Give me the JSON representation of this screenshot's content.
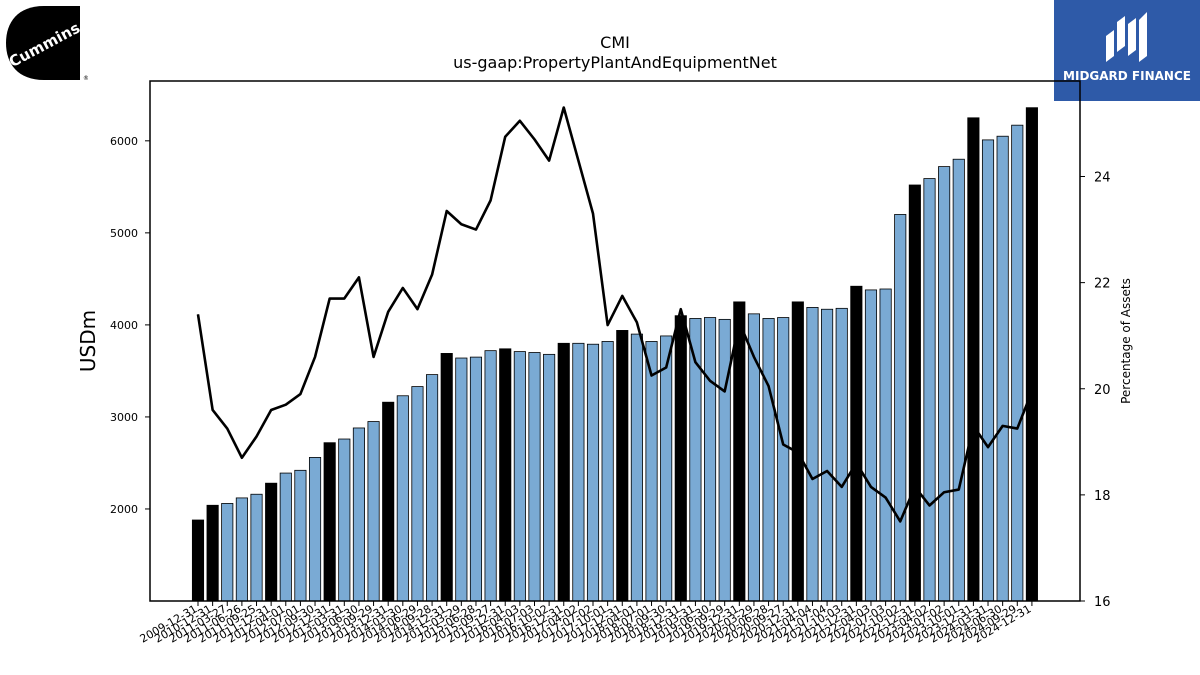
{
  "brand_left": {
    "logo_text": "Cummins",
    "icon": "cummins-logo-icon"
  },
  "brand_right": {
    "logo_text": "MIDGARD FINANCE",
    "icon": "midgard-logo-icon"
  },
  "chart_data": {
    "type": "bar",
    "title": "CMI",
    "subtitle": "us-gaap:PropertyPlantAndEquipmentNet",
    "ylabel": "USDm",
    "y2label": "Percentage of Assets",
    "ylim": [
      1000,
      6650
    ],
    "y2lim": [
      16,
      25.8
    ],
    "yticks": [
      2000,
      3000,
      4000,
      5000,
      6000
    ],
    "y2ticks": [
      16,
      18,
      20,
      22,
      24
    ],
    "colors": {
      "annual_bar": "#000000",
      "quarter_bar": "#7aaad4",
      "line": "#000000"
    },
    "categories": [
      "2009-12-31",
      "2010-12-31",
      "2011-03-27",
      "2011-06-26",
      "2011-09-25",
      "2011-12-31",
      "2012-04-01",
      "2012-07-01",
      "2012-09-30",
      "2012-12-31",
      "2013-03-31",
      "2013-06-30",
      "2013-09-29",
      "2013-12-31",
      "2014-03-30",
      "2014-06-29",
      "2014-09-28",
      "2014-12-31",
      "2015-03-29",
      "2015-06-28",
      "2015-09-27",
      "2015-12-31",
      "2016-04-03",
      "2016-07-03",
      "2016-10-02",
      "2016-12-31",
      "2017-04-02",
      "2017-07-02",
      "2017-10-01",
      "2017-12-31",
      "2018-04-01",
      "2018-07-01",
      "2018-09-30",
      "2018-12-31",
      "2019-03-31",
      "2019-06-30",
      "2019-09-29",
      "2019-12-31",
      "2020-03-29",
      "2020-06-28",
      "2020-09-27",
      "2020-12-31",
      "2021-04-04",
      "2021-07-04",
      "2021-10-03",
      "2021-12-31",
      "2022-04-03",
      "2022-07-03",
      "2022-10-02",
      "2022-12-31",
      "2023-04-02",
      "2023-07-02",
      "2023-10-01",
      "2023-12-31",
      "2024-03-31",
      "2024-06-30",
      "2024-09-29",
      "2024-12-31"
    ],
    "tick_labels": [
      "2009-12-31",
      "2010-12-31",
      "2011-03-27",
      "2011-06-26",
      "2011-09-25",
      "2011-12-31",
      "2012-04-01",
      "2012-07-01",
      "2012-09-30",
      "2012-12-31",
      "2013-03-31",
      "2013-06-30",
      "2013-09-29",
      "2013-12-31",
      "2014-03-30",
      "2014-06-29",
      "2014-09-28",
      "2014-12-31",
      "2015-03-29",
      "2015-06-28",
      "2015-09-27",
      "2015-12-31",
      "2016-04-03",
      "2016-07-03",
      "2016-10-02",
      "2016-12-31",
      "2017-04-02",
      "2017-07-02",
      "2017-10-01",
      "2017-12-31",
      "2018-04-01",
      "2018-07-01",
      "2018-09-30",
      "2018-12-31",
      "2019-03-31",
      "2019-06-30",
      "2019-09-29",
      "2019-12-31",
      "2020-03-29",
      "2020-06-28",
      "2020-09-27",
      "2020-12-31",
      "2021-04-04",
      "2021-07-04",
      "2021-10-03",
      "2021-12-31",
      "2022-04-03",
      "2022-07-03",
      "2022-10-02",
      "2022-12-31",
      "2023-04-02",
      "2023-07-02",
      "2023-10-01",
      "2023-12-31",
      "2024-03-31",
      "2024-06-30",
      "2024-09-29",
      "2024-12-31"
    ],
    "series": [
      {
        "values": [
          1880,
          2040,
          2060,
          2120,
          2160,
          2280,
          2390,
          2420,
          2560,
          2720,
          2760,
          2880,
          2950,
          3160,
          3230,
          3330,
          3460,
          3690,
          3640,
          3650,
          3720,
          3740,
          3710,
          3700,
          3680,
          3800,
          3800,
          3790,
          3820,
          3940,
          3900,
          3820,
          3880,
          4100,
          4070,
          4080,
          4060,
          4250,
          4120,
          4070,
          4080,
          4250,
          4190,
          4170,
          4180,
          4420,
          4380,
          4390,
          5200,
          5520,
          5590,
          5720,
          5800,
          6250,
          6010,
          6050,
          6170,
          6360
        ],
        "annual": [
          true,
          true,
          false,
          false,
          false,
          true,
          false,
          false,
          false,
          true,
          false,
          false,
          false,
          true,
          false,
          false,
          false,
          true,
          false,
          false,
          false,
          true,
          false,
          false,
          false,
          true,
          false,
          false,
          false,
          true,
          false,
          false,
          false,
          true,
          false,
          false,
          false,
          true,
          false,
          false,
          false,
          true,
          false,
          false,
          false,
          true,
          false,
          false,
          false,
          true,
          false,
          false,
          false,
          true,
          false,
          false,
          false,
          true
        ]
      },
      {
        "axis": "right",
        "values": [
          21.4,
          19.6,
          19.25,
          18.7,
          19.1,
          19.6,
          19.7,
          19.9,
          20.6,
          21.7,
          21.7,
          22.1,
          20.6,
          21.45,
          21.9,
          21.5,
          22.15,
          23.35,
          23.1,
          23.0,
          23.55,
          24.75,
          25.05,
          24.7,
          24.3,
          25.3,
          24.3,
          23.3,
          21.2,
          21.75,
          21.25,
          20.25,
          20.4,
          21.5,
          20.5,
          20.15,
          19.95,
          21.25,
          20.6,
          20.05,
          18.95,
          18.8,
          18.3,
          18.45,
          18.15,
          18.6,
          18.15,
          17.95,
          17.5,
          18.15,
          17.8,
          18.05,
          18.1,
          19.3,
          18.9,
          19.3,
          19.25,
          19.95
        ]
      }
    ]
  }
}
